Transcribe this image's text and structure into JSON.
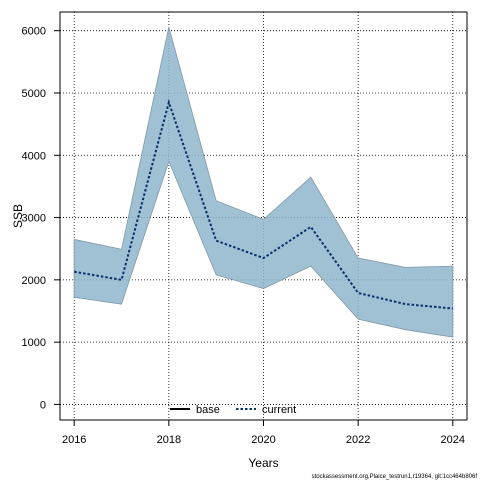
{
  "chart_data": {
    "type": "line",
    "xlabel": "Years",
    "ylabel": "SSB",
    "xlim": [
      2015.7,
      2024.3
    ],
    "ylim": [
      -250,
      6300
    ],
    "x_ticks": [
      2016,
      2018,
      2020,
      2022,
      2024
    ],
    "y_ticks": [
      0,
      1000,
      2000,
      3000,
      4000,
      5000,
      6000
    ],
    "grid": true,
    "legend_position": "bottom-center",
    "x": [
      2016,
      2017,
      2018,
      2019,
      2020,
      2021,
      2022,
      2023,
      2024
    ],
    "series": [
      {
        "name": "base",
        "values": [
          2130,
          2000,
          4850,
          2630,
          2350,
          2850,
          1790,
          1610,
          1540
        ],
        "color": "#000000"
      },
      {
        "name": "current",
        "values": [
          2130,
          2000,
          4850,
          2630,
          2350,
          2850,
          1790,
          1610,
          1540
        ],
        "color": "#08306b"
      }
    ],
    "confidence_band": {
      "lower": [
        1720,
        1610,
        3900,
        2080,
        1860,
        2220,
        1370,
        1200,
        1080
      ],
      "upper": [
        2650,
        2490,
        6060,
        3270,
        2970,
        3650,
        2350,
        2200,
        2220
      ],
      "fill_color": "#8fb5cc"
    }
  },
  "caption": "stockassessment.org,Plaice_testrun1,r19364, git:1cc464b806f"
}
